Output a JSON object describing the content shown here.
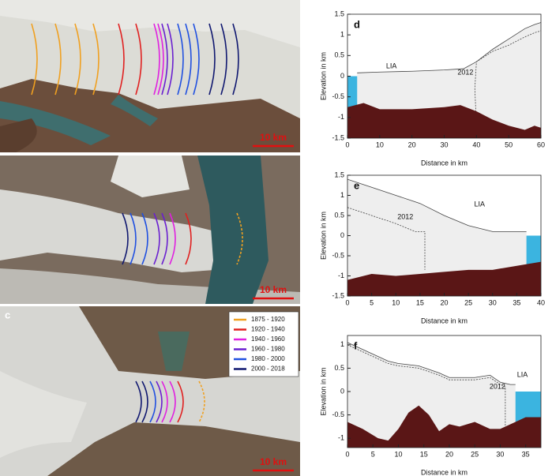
{
  "images": [
    {
      "scale_bar": "10 km"
    },
    {
      "scale_bar": "10 km"
    },
    {
      "panel": "c",
      "scale_bar": "10 km"
    }
  ],
  "legend": {
    "entries": [
      {
        "label": "1875 - 1920",
        "color": "#f0a020"
      },
      {
        "label": "1920 - 1940",
        "color": "#e02020"
      },
      {
        "label": "1940 - 1960",
        "color": "#e020e0"
      },
      {
        "label": "1960 - 1980",
        "color": "#6a20d0"
      },
      {
        "label": "1980 - 2000",
        "color": "#2050e0"
      },
      {
        "label": "2000 - 2018",
        "color": "#101870"
      }
    ]
  },
  "chart_data": [
    {
      "type": "line",
      "panel": "d",
      "xlabel": "Distance in km",
      "ylabel": "Elevation in km",
      "xlim": [
        0,
        60
      ],
      "xticks": [
        0,
        10,
        20,
        30,
        40,
        50,
        60
      ],
      "ylim": [
        -1.5,
        1.5
      ],
      "yticks": [
        -1.5,
        -1,
        -0.5,
        0,
        0.5,
        1,
        1.5
      ],
      "ice_color": "#eeeeee",
      "water_color": "#3bb4e0",
      "series": [
        {
          "name": "LIA",
          "color": "#444444",
          "linestyle": "solid",
          "x": [
            3,
            10,
            20,
            30,
            36,
            40,
            45,
            50,
            55,
            58,
            60
          ],
          "values": [
            0.08,
            0.1,
            0.12,
            0.15,
            0.18,
            0.35,
            0.65,
            0.9,
            1.15,
            1.25,
            1.3
          ]
        },
        {
          "name": "2012",
          "color": "#444444",
          "linestyle": "dashed",
          "x": [
            40,
            39.5,
            40,
            45,
            50,
            55,
            58,
            60
          ],
          "values": [
            -1.2,
            -0.3,
            0.35,
            0.6,
            0.75,
            0.95,
            1.05,
            1.1
          ]
        },
        {
          "color": "#5a1616",
          "fill": true,
          "x": [
            0,
            5,
            10,
            20,
            30,
            35,
            40,
            45,
            50,
            55,
            58,
            60
          ],
          "values": [
            -0.75,
            -0.65,
            -0.8,
            -0.8,
            -0.75,
            -0.7,
            -0.85,
            -1.05,
            -1.2,
            -1.3,
            -1.2,
            -1.25
          ]
        }
      ]
    },
    {
      "type": "line",
      "panel": "e",
      "xlabel": "Distance in km",
      "ylabel": "Elevation in km",
      "xlim": [
        0,
        40
      ],
      "xticks": [
        0,
        5,
        10,
        15,
        20,
        25,
        30,
        35,
        40
      ],
      "ylim": [
        -1.5,
        1.5
      ],
      "yticks": [
        -1.5,
        -1,
        -0.5,
        0,
        0.5,
        1,
        1.5
      ],
      "ice_color": "#eeeeee",
      "water_color": "#3bb4e0",
      "series": [
        {
          "name": "LIA",
          "color": "#444444",
          "linestyle": "solid",
          "x": [
            0,
            5,
            10,
            15,
            20,
            25,
            30,
            35,
            37
          ],
          "values": [
            1.4,
            1.2,
            1.0,
            0.8,
            0.5,
            0.25,
            0.1,
            0.1,
            0.1
          ]
        },
        {
          "name": "2012",
          "color": "#444444",
          "linestyle": "dashed",
          "x": [
            0,
            5,
            10,
            14,
            16,
            16
          ],
          "values": [
            0.7,
            0.5,
            0.3,
            0.1,
            0.1,
            -0.85
          ]
        },
        {
          "color": "#5a1616",
          "fill": true,
          "x": [
            0,
            5,
            10,
            15,
            20,
            25,
            30,
            35,
            40
          ],
          "values": [
            -1.1,
            -0.95,
            -1.0,
            -0.95,
            -0.9,
            -0.85,
            -0.85,
            -0.75,
            -0.65
          ]
        }
      ]
    },
    {
      "type": "line",
      "panel": "f",
      "xlabel": "Distance in km",
      "ylabel": "Elevation in km",
      "xlim": [
        0,
        38
      ],
      "xticks": [
        0,
        5,
        10,
        15,
        20,
        25,
        30,
        35
      ],
      "ylim": [
        -1.2,
        1.2
      ],
      "yticks": [
        -1,
        -0.5,
        0,
        0.5,
        1
      ],
      "ice_color": "#eeeeee",
      "water_color": "#3bb4e0",
      "series": [
        {
          "name": "LIA",
          "color": "#444444",
          "linestyle": "solid",
          "x": [
            0,
            2,
            5,
            8,
            10,
            14,
            18,
            20,
            25,
            28,
            30,
            32,
            33
          ],
          "values": [
            1.05,
            0.95,
            0.8,
            0.65,
            0.6,
            0.55,
            0.4,
            0.3,
            0.3,
            0.35,
            0.2,
            0.15,
            0.15
          ]
        },
        {
          "name": "2012",
          "color": "#444444",
          "linestyle": "dashed",
          "x": [
            0,
            2,
            5,
            8,
            10,
            14,
            18,
            20,
            25,
            28,
            30,
            31,
            31
          ],
          "values": [
            1.0,
            0.9,
            0.75,
            0.6,
            0.55,
            0.5,
            0.35,
            0.25,
            0.25,
            0.3,
            0.15,
            0.1,
            -0.75
          ]
        },
        {
          "color": "#5a1616",
          "fill": true,
          "x": [
            0,
            3,
            6,
            8,
            10,
            12,
            14,
            16,
            18,
            20,
            22,
            25,
            28,
            30,
            33,
            35,
            38
          ],
          "values": [
            -0.65,
            -0.8,
            -1.0,
            -1.05,
            -0.8,
            -0.45,
            -0.3,
            -0.5,
            -0.85,
            -0.7,
            -0.75,
            -0.65,
            -0.8,
            -0.8,
            -0.65,
            -0.55,
            -0.55
          ]
        }
      ]
    }
  ]
}
